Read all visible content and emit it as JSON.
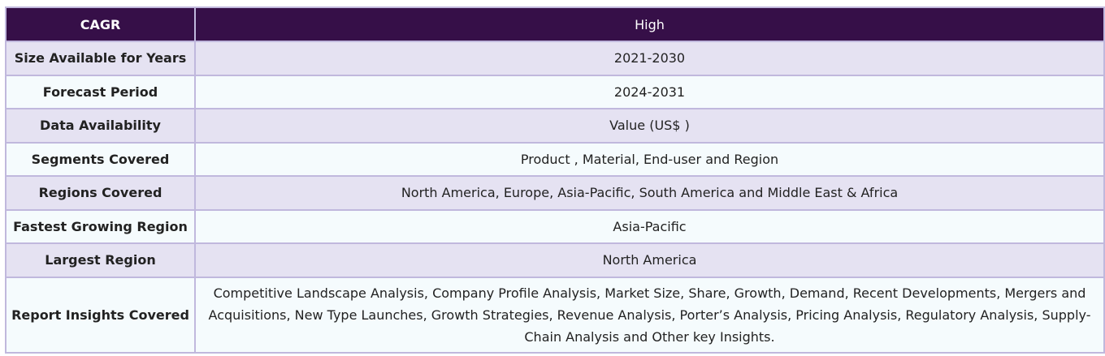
{
  "table": {
    "header": {
      "label": "CAGR",
      "value": "High"
    },
    "rows": [
      {
        "label": "Size Available for Years",
        "value": "2021-2030"
      },
      {
        "label": "Forecast Period",
        "value": "2024-2031"
      },
      {
        "label": "Data Availability",
        "value": "Value (US$ )"
      },
      {
        "label": "Segments Covered",
        "value": "Product , Material, End-user and Region"
      },
      {
        "label": "Regions Covered",
        "value": "North America, Europe, Asia-Pacific, South America and Middle East & Africa"
      },
      {
        "label": "Fastest Growing Region",
        "value": "Asia-Pacific"
      },
      {
        "label": "Largest Region",
        "value": "North America"
      },
      {
        "label": "Report Insights Covered",
        "value": "Competitive Landscape Analysis, Company Profile Analysis, Market Size, Share, Growth, Demand, Recent Developments, Mergers and Acquisitions, New Type Launches, Growth Strategies, Revenue Analysis, Porter’s Analysis, Pricing Analysis, Regulatory Analysis, Supply-Chain Analysis and Other key Insights."
      }
    ]
  },
  "colors": {
    "header_bg": "#360f48",
    "row_odd_bg": "#e5e2f2",
    "row_even_bg": "#f5fbfd",
    "border": "#c0b8dd"
  }
}
